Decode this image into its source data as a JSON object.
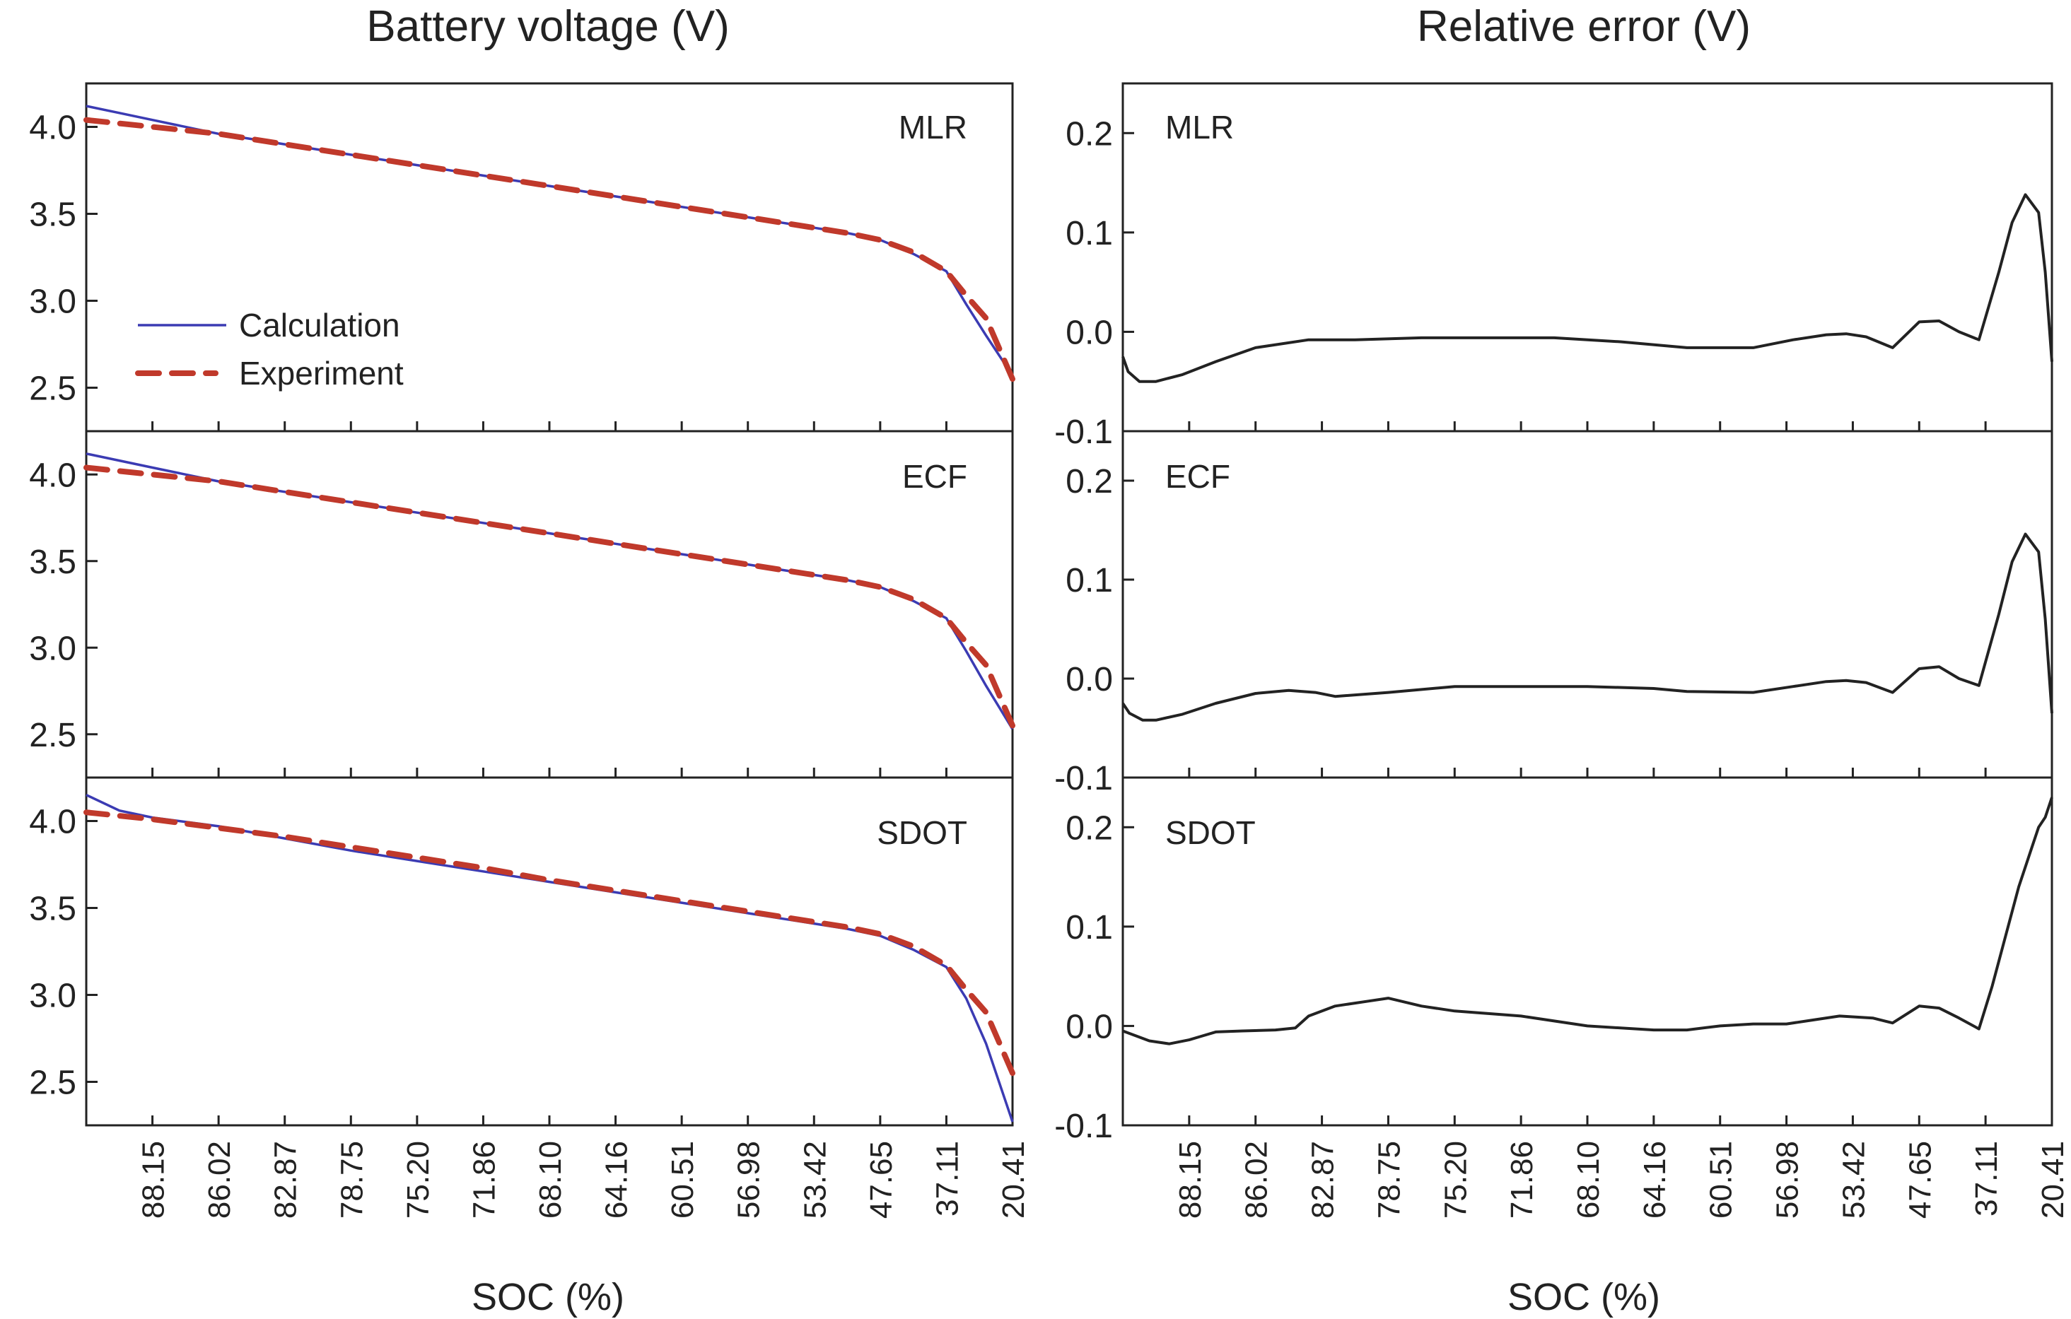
{
  "chart_data": [
    {
      "type": "line",
      "column_title": "Battery voltage (V)",
      "xlabel": "SOC (%)",
      "ylabel": "",
      "ylim": [
        2.25,
        4.25
      ],
      "y_ticks": [
        "2.5",
        "3.0",
        "3.5",
        "4.0"
      ],
      "y_tick_values": [
        2.5,
        3.0,
        3.5,
        4.0
      ],
      "x_tick_labels": [
        "88.15",
        "86.02",
        "82.87",
        "78.75",
        "75.20",
        "71.86",
        "68.10",
        "64.16",
        "60.51",
        "56.98",
        "53.42",
        "47.65",
        "37.11",
        "20.41"
      ],
      "legend": {
        "position": "lower-left",
        "entries": [
          {
            "name": "Calculation",
            "color": "#3b3bb3",
            "style": "solid"
          },
          {
            "name": "Experiment",
            "color": "#c0392b",
            "style": "dashed"
          }
        ]
      },
      "x": [
        0,
        0.5,
        1,
        2,
        3,
        4,
        5,
        6,
        7,
        8,
        9,
        10,
        10.5,
        11,
        11.5,
        12,
        12.5,
        13,
        13.3,
        13.6,
        14
      ],
      "panels": [
        {
          "label": "MLR",
          "series": [
            {
              "name": "Calculation",
              "values": [
                4.12,
                4.08,
                4.04,
                3.96,
                3.9,
                3.84,
                3.78,
                3.72,
                3.66,
                3.6,
                3.54,
                3.48,
                3.45,
                3.42,
                3.39,
                3.35,
                3.27,
                3.17,
                2.98,
                2.8,
                2.57
              ]
            },
            {
              "name": "Experiment",
              "values": [
                4.04,
                4.02,
                4.0,
                3.96,
                3.9,
                3.84,
                3.78,
                3.72,
                3.66,
                3.6,
                3.54,
                3.48,
                3.45,
                3.42,
                3.39,
                3.35,
                3.28,
                3.17,
                3.03,
                2.9,
                2.55
              ]
            }
          ]
        },
        {
          "label": "ECF",
          "series": [
            {
              "name": "Calculation",
              "values": [
                4.12,
                4.08,
                4.04,
                3.96,
                3.9,
                3.84,
                3.78,
                3.72,
                3.66,
                3.6,
                3.54,
                3.48,
                3.45,
                3.42,
                3.39,
                3.35,
                3.27,
                3.17,
                2.98,
                2.78,
                2.53
              ]
            },
            {
              "name": "Experiment",
              "values": [
                4.04,
                4.02,
                4.0,
                3.96,
                3.9,
                3.84,
                3.78,
                3.72,
                3.66,
                3.6,
                3.54,
                3.48,
                3.45,
                3.42,
                3.39,
                3.35,
                3.28,
                3.17,
                3.03,
                2.9,
                2.55
              ]
            }
          ]
        },
        {
          "label": "SDOT",
          "series": [
            {
              "name": "Calculation",
              "values": [
                4.15,
                4.06,
                4.02,
                3.97,
                3.9,
                3.83,
                3.77,
                3.71,
                3.65,
                3.59,
                3.53,
                3.47,
                3.44,
                3.41,
                3.38,
                3.34,
                3.26,
                3.16,
                2.98,
                2.72,
                2.27
              ]
            },
            {
              "name": "Experiment",
              "values": [
                4.05,
                4.03,
                4.01,
                3.96,
                3.91,
                3.85,
                3.79,
                3.73,
                3.66,
                3.6,
                3.54,
                3.48,
                3.45,
                3.42,
                3.39,
                3.35,
                3.28,
                3.17,
                3.03,
                2.9,
                2.55
              ]
            }
          ]
        }
      ]
    },
    {
      "type": "line",
      "column_title": "Relative error (V)",
      "xlabel": "SOC (%)",
      "ylabel": "",
      "ylim": [
        -0.1,
        0.25
      ],
      "y_ticks": [
        "-0.1",
        "0.0",
        "0.1",
        "0.2"
      ],
      "y_tick_values": [
        -0.1,
        0.0,
        0.1,
        0.2
      ],
      "x_tick_labels": [
        "88.15",
        "86.02",
        "82.87",
        "78.75",
        "75.20",
        "71.86",
        "68.10",
        "64.16",
        "60.51",
        "56.98",
        "53.42",
        "47.65",
        "37.11",
        "20.41"
      ],
      "panels": [
        {
          "label": "MLR",
          "series": [
            {
              "name": "Relative error",
              "x": [
                0,
                0.08,
                0.25,
                0.5,
                0.9,
                1.4,
                2.0,
                2.8,
                3.5,
                4.5,
                5.5,
                6.5,
                7.5,
                8.5,
                9.5,
                10.1,
                10.6,
                10.9,
                11.2,
                11.6,
                12.0,
                12.3,
                12.6,
                12.9,
                13.2,
                13.4,
                13.6,
                13.8,
                13.9,
                14.0
              ],
              "values": [
                -0.025,
                -0.04,
                -0.05,
                -0.05,
                -0.043,
                -0.03,
                -0.016,
                -0.008,
                -0.008,
                -0.006,
                -0.006,
                -0.006,
                -0.01,
                -0.016,
                -0.016,
                -0.008,
                -0.003,
                -0.002,
                -0.005,
                -0.016,
                0.01,
                0.011,
                0.0,
                -0.008,
                0.06,
                0.11,
                0.138,
                0.12,
                0.06,
                -0.03
              ]
            }
          ]
        },
        {
          "label": "ECF",
          "series": [
            {
              "name": "Relative error",
              "x": [
                0,
                0.1,
                0.3,
                0.5,
                0.9,
                1.4,
                2.0,
                2.5,
                2.9,
                3.2,
                4.0,
                5.0,
                6.0,
                7.0,
                8.0,
                8.5,
                9.5,
                10.1,
                10.6,
                10.9,
                11.2,
                11.6,
                12.0,
                12.3,
                12.6,
                12.9,
                13.2,
                13.4,
                13.6,
                13.8,
                13.9,
                14.0
              ],
              "values": [
                -0.025,
                -0.035,
                -0.042,
                -0.042,
                -0.036,
                -0.025,
                -0.015,
                -0.012,
                -0.014,
                -0.018,
                -0.014,
                -0.008,
                -0.008,
                -0.008,
                -0.01,
                -0.013,
                -0.014,
                -0.008,
                -0.003,
                -0.002,
                -0.004,
                -0.014,
                0.01,
                0.012,
                0.0,
                -0.007,
                0.065,
                0.118,
                0.146,
                0.128,
                0.06,
                -0.035
              ]
            }
          ]
        },
        {
          "label": "SDOT",
          "series": [
            {
              "name": "Relative error",
              "x": [
                0,
                0.2,
                0.4,
                0.7,
                1.0,
                1.2,
                1.4,
                1.8,
                2.3,
                2.6,
                2.8,
                3.2,
                3.7,
                4.0,
                4.5,
                5.0,
                6.0,
                7.0,
                8.0,
                8.5,
                9.0,
                9.5,
                10.0,
                10.4,
                10.8,
                11.3,
                11.6,
                12.0,
                12.3,
                12.6,
                12.9,
                13.1,
                13.3,
                13.5,
                13.7,
                13.8,
                13.9,
                14.0
              ],
              "values": [
                -0.005,
                -0.01,
                -0.015,
                -0.018,
                -0.014,
                -0.01,
                -0.006,
                -0.005,
                -0.004,
                -0.002,
                0.01,
                0.02,
                0.025,
                0.028,
                0.02,
                0.015,
                0.01,
                0.0,
                -0.004,
                -0.004,
                0.0,
                0.002,
                0.002,
                0.006,
                0.01,
                0.008,
                0.003,
                0.02,
                0.018,
                0.008,
                -0.003,
                0.04,
                0.09,
                0.14,
                0.18,
                0.2,
                0.21,
                0.23
              ]
            }
          ]
        }
      ]
    }
  ]
}
